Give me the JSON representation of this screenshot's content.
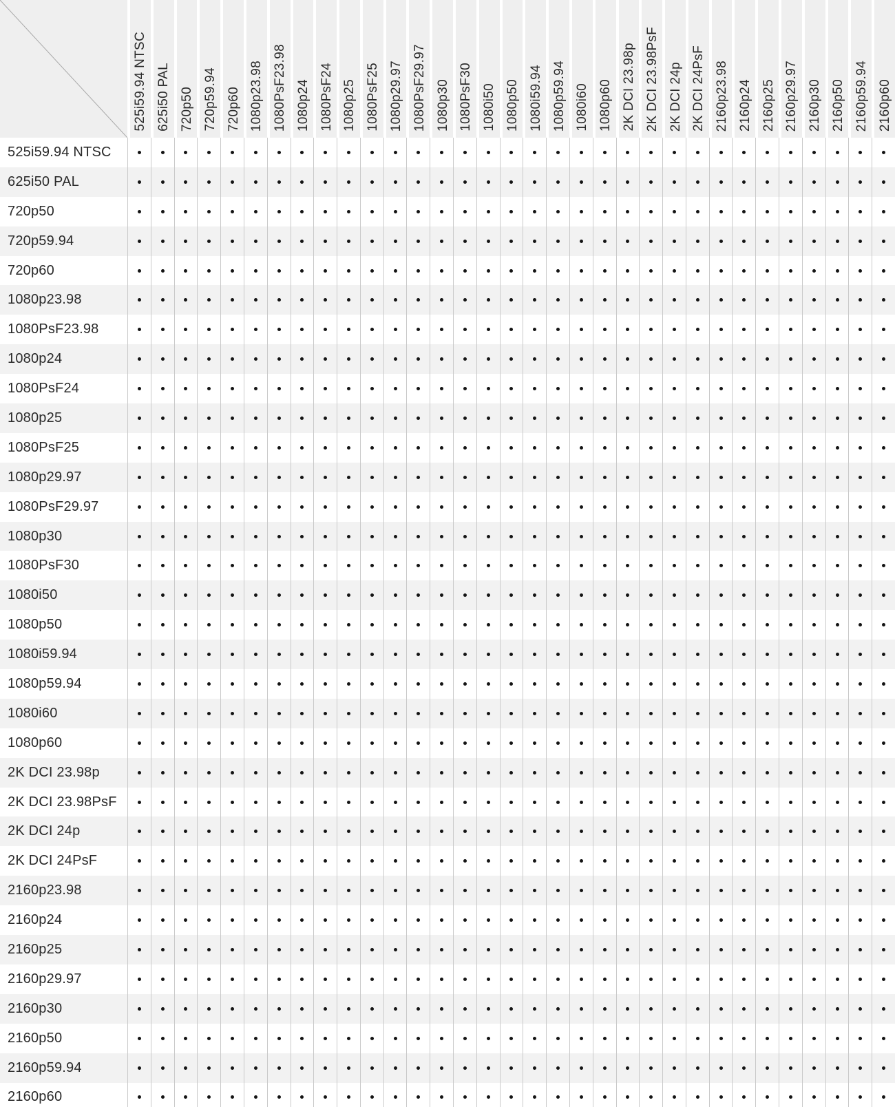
{
  "chart_data": {
    "type": "table",
    "marker": "•",
    "all_cells_marked": true,
    "column_headers": [
      "525i59.94 NTSC",
      "625i50 PAL",
      "720p50",
      "720p59.94",
      "720p60",
      "1080p23.98",
      "1080PsF23.98",
      "1080p24",
      "1080PsF24",
      "1080p25",
      "1080PsF25",
      "1080p29.97",
      "1080PsF29.97",
      "1080p30",
      "1080PsF30",
      "1080i50",
      "1080p50",
      "1080i59.94",
      "1080p59.94",
      "1080i60",
      "1080p60",
      "2K DCI 23.98p",
      "2K DCI 23.98PsF",
      "2K DCI 24p",
      "2K DCI 24PsF",
      "2160p23.98",
      "2160p24",
      "2160p25",
      "2160p29.97",
      "2160p30",
      "2160p50",
      "2160p59.94",
      "2160p60"
    ],
    "rows": [
      {
        "label": "525i59.94 NTSC",
        "cells": [
          1,
          1,
          1,
          1,
          1,
          1,
          1,
          1,
          1,
          1,
          1,
          1,
          1,
          1,
          1,
          1,
          1,
          1,
          1,
          1,
          1,
          1,
          1,
          1,
          1,
          1,
          1,
          1,
          1,
          1,
          1,
          1,
          1
        ]
      },
      {
        "label": "625i50 PAL",
        "cells": [
          1,
          1,
          1,
          1,
          1,
          1,
          1,
          1,
          1,
          1,
          1,
          1,
          1,
          1,
          1,
          1,
          1,
          1,
          1,
          1,
          1,
          1,
          1,
          1,
          1,
          1,
          1,
          1,
          1,
          1,
          1,
          1,
          1
        ]
      },
      {
        "label": "720p50",
        "cells": [
          1,
          1,
          1,
          1,
          1,
          1,
          1,
          1,
          1,
          1,
          1,
          1,
          1,
          1,
          1,
          1,
          1,
          1,
          1,
          1,
          1,
          1,
          1,
          1,
          1,
          1,
          1,
          1,
          1,
          1,
          1,
          1,
          1
        ]
      },
      {
        "label": "720p59.94",
        "cells": [
          1,
          1,
          1,
          1,
          1,
          1,
          1,
          1,
          1,
          1,
          1,
          1,
          1,
          1,
          1,
          1,
          1,
          1,
          1,
          1,
          1,
          1,
          1,
          1,
          1,
          1,
          1,
          1,
          1,
          1,
          1,
          1,
          1
        ]
      },
      {
        "label": "720p60",
        "cells": [
          1,
          1,
          1,
          1,
          1,
          1,
          1,
          1,
          1,
          1,
          1,
          1,
          1,
          1,
          1,
          1,
          1,
          1,
          1,
          1,
          1,
          1,
          1,
          1,
          1,
          1,
          1,
          1,
          1,
          1,
          1,
          1,
          1
        ]
      },
      {
        "label": "1080p23.98",
        "cells": [
          1,
          1,
          1,
          1,
          1,
          1,
          1,
          1,
          1,
          1,
          1,
          1,
          1,
          1,
          1,
          1,
          1,
          1,
          1,
          1,
          1,
          1,
          1,
          1,
          1,
          1,
          1,
          1,
          1,
          1,
          1,
          1,
          1
        ]
      },
      {
        "label": "1080PsF23.98",
        "cells": [
          1,
          1,
          1,
          1,
          1,
          1,
          1,
          1,
          1,
          1,
          1,
          1,
          1,
          1,
          1,
          1,
          1,
          1,
          1,
          1,
          1,
          1,
          1,
          1,
          1,
          1,
          1,
          1,
          1,
          1,
          1,
          1,
          1
        ]
      },
      {
        "label": "1080p24",
        "cells": [
          1,
          1,
          1,
          1,
          1,
          1,
          1,
          1,
          1,
          1,
          1,
          1,
          1,
          1,
          1,
          1,
          1,
          1,
          1,
          1,
          1,
          1,
          1,
          1,
          1,
          1,
          1,
          1,
          1,
          1,
          1,
          1,
          1
        ]
      },
      {
        "label": "1080PsF24",
        "cells": [
          1,
          1,
          1,
          1,
          1,
          1,
          1,
          1,
          1,
          1,
          1,
          1,
          1,
          1,
          1,
          1,
          1,
          1,
          1,
          1,
          1,
          1,
          1,
          1,
          1,
          1,
          1,
          1,
          1,
          1,
          1,
          1,
          1
        ]
      },
      {
        "label": "1080p25",
        "cells": [
          1,
          1,
          1,
          1,
          1,
          1,
          1,
          1,
          1,
          1,
          1,
          1,
          1,
          1,
          1,
          1,
          1,
          1,
          1,
          1,
          1,
          1,
          1,
          1,
          1,
          1,
          1,
          1,
          1,
          1,
          1,
          1,
          1
        ]
      },
      {
        "label": "1080PsF25",
        "cells": [
          1,
          1,
          1,
          1,
          1,
          1,
          1,
          1,
          1,
          1,
          1,
          1,
          1,
          1,
          1,
          1,
          1,
          1,
          1,
          1,
          1,
          1,
          1,
          1,
          1,
          1,
          1,
          1,
          1,
          1,
          1,
          1,
          1
        ]
      },
      {
        "label": "1080p29.97",
        "cells": [
          1,
          1,
          1,
          1,
          1,
          1,
          1,
          1,
          1,
          1,
          1,
          1,
          1,
          1,
          1,
          1,
          1,
          1,
          1,
          1,
          1,
          1,
          1,
          1,
          1,
          1,
          1,
          1,
          1,
          1,
          1,
          1,
          1
        ]
      },
      {
        "label": "1080PsF29.97",
        "cells": [
          1,
          1,
          1,
          1,
          1,
          1,
          1,
          1,
          1,
          1,
          1,
          1,
          1,
          1,
          1,
          1,
          1,
          1,
          1,
          1,
          1,
          1,
          1,
          1,
          1,
          1,
          1,
          1,
          1,
          1,
          1,
          1,
          1
        ]
      },
      {
        "label": "1080p30",
        "cells": [
          1,
          1,
          1,
          1,
          1,
          1,
          1,
          1,
          1,
          1,
          1,
          1,
          1,
          1,
          1,
          1,
          1,
          1,
          1,
          1,
          1,
          1,
          1,
          1,
          1,
          1,
          1,
          1,
          1,
          1,
          1,
          1,
          1
        ]
      },
      {
        "label": "1080PsF30",
        "cells": [
          1,
          1,
          1,
          1,
          1,
          1,
          1,
          1,
          1,
          1,
          1,
          1,
          1,
          1,
          1,
          1,
          1,
          1,
          1,
          1,
          1,
          1,
          1,
          1,
          1,
          1,
          1,
          1,
          1,
          1,
          1,
          1,
          1
        ]
      },
      {
        "label": "1080i50",
        "cells": [
          1,
          1,
          1,
          1,
          1,
          1,
          1,
          1,
          1,
          1,
          1,
          1,
          1,
          1,
          1,
          1,
          1,
          1,
          1,
          1,
          1,
          1,
          1,
          1,
          1,
          1,
          1,
          1,
          1,
          1,
          1,
          1,
          1
        ]
      },
      {
        "label": "1080p50",
        "cells": [
          1,
          1,
          1,
          1,
          1,
          1,
          1,
          1,
          1,
          1,
          1,
          1,
          1,
          1,
          1,
          1,
          1,
          1,
          1,
          1,
          1,
          1,
          1,
          1,
          1,
          1,
          1,
          1,
          1,
          1,
          1,
          1,
          1
        ]
      },
      {
        "label": "1080i59.94",
        "cells": [
          1,
          1,
          1,
          1,
          1,
          1,
          1,
          1,
          1,
          1,
          1,
          1,
          1,
          1,
          1,
          1,
          1,
          1,
          1,
          1,
          1,
          1,
          1,
          1,
          1,
          1,
          1,
          1,
          1,
          1,
          1,
          1,
          1
        ]
      },
      {
        "label": "1080p59.94",
        "cells": [
          1,
          1,
          1,
          1,
          1,
          1,
          1,
          1,
          1,
          1,
          1,
          1,
          1,
          1,
          1,
          1,
          1,
          1,
          1,
          1,
          1,
          1,
          1,
          1,
          1,
          1,
          1,
          1,
          1,
          1,
          1,
          1,
          1
        ]
      },
      {
        "label": "1080i60",
        "cells": [
          1,
          1,
          1,
          1,
          1,
          1,
          1,
          1,
          1,
          1,
          1,
          1,
          1,
          1,
          1,
          1,
          1,
          1,
          1,
          1,
          1,
          1,
          1,
          1,
          1,
          1,
          1,
          1,
          1,
          1,
          1,
          1,
          1
        ]
      },
      {
        "label": "1080p60",
        "cells": [
          1,
          1,
          1,
          1,
          1,
          1,
          1,
          1,
          1,
          1,
          1,
          1,
          1,
          1,
          1,
          1,
          1,
          1,
          1,
          1,
          1,
          1,
          1,
          1,
          1,
          1,
          1,
          1,
          1,
          1,
          1,
          1,
          1
        ]
      },
      {
        "label": "2K DCI 23.98p",
        "cells": [
          1,
          1,
          1,
          1,
          1,
          1,
          1,
          1,
          1,
          1,
          1,
          1,
          1,
          1,
          1,
          1,
          1,
          1,
          1,
          1,
          1,
          1,
          1,
          1,
          1,
          1,
          1,
          1,
          1,
          1,
          1,
          1,
          1
        ]
      },
      {
        "label": "2K DCI 23.98PsF",
        "cells": [
          1,
          1,
          1,
          1,
          1,
          1,
          1,
          1,
          1,
          1,
          1,
          1,
          1,
          1,
          1,
          1,
          1,
          1,
          1,
          1,
          1,
          1,
          1,
          1,
          1,
          1,
          1,
          1,
          1,
          1,
          1,
          1,
          1
        ]
      },
      {
        "label": "2K DCI 24p",
        "cells": [
          1,
          1,
          1,
          1,
          1,
          1,
          1,
          1,
          1,
          1,
          1,
          1,
          1,
          1,
          1,
          1,
          1,
          1,
          1,
          1,
          1,
          1,
          1,
          1,
          1,
          1,
          1,
          1,
          1,
          1,
          1,
          1,
          1
        ]
      },
      {
        "label": "2K DCI 24PsF",
        "cells": [
          1,
          1,
          1,
          1,
          1,
          1,
          1,
          1,
          1,
          1,
          1,
          1,
          1,
          1,
          1,
          1,
          1,
          1,
          1,
          1,
          1,
          1,
          1,
          1,
          1,
          1,
          1,
          1,
          1,
          1,
          1,
          1,
          1
        ]
      },
      {
        "label": "2160p23.98",
        "cells": [
          1,
          1,
          1,
          1,
          1,
          1,
          1,
          1,
          1,
          1,
          1,
          1,
          1,
          1,
          1,
          1,
          1,
          1,
          1,
          1,
          1,
          1,
          1,
          1,
          1,
          1,
          1,
          1,
          1,
          1,
          1,
          1,
          1
        ]
      },
      {
        "label": "2160p24",
        "cells": [
          1,
          1,
          1,
          1,
          1,
          1,
          1,
          1,
          1,
          1,
          1,
          1,
          1,
          1,
          1,
          1,
          1,
          1,
          1,
          1,
          1,
          1,
          1,
          1,
          1,
          1,
          1,
          1,
          1,
          1,
          1,
          1,
          1
        ]
      },
      {
        "label": "2160p25",
        "cells": [
          1,
          1,
          1,
          1,
          1,
          1,
          1,
          1,
          1,
          1,
          1,
          1,
          1,
          1,
          1,
          1,
          1,
          1,
          1,
          1,
          1,
          1,
          1,
          1,
          1,
          1,
          1,
          1,
          1,
          1,
          1,
          1,
          1
        ]
      },
      {
        "label": "2160p29.97",
        "cells": [
          1,
          1,
          1,
          1,
          1,
          1,
          1,
          1,
          1,
          1,
          1,
          1,
          1,
          1,
          1,
          1,
          1,
          1,
          1,
          1,
          1,
          1,
          1,
          1,
          1,
          1,
          1,
          1,
          1,
          1,
          1,
          1,
          1
        ]
      },
      {
        "label": "2160p30",
        "cells": [
          1,
          1,
          1,
          1,
          1,
          1,
          1,
          1,
          1,
          1,
          1,
          1,
          1,
          1,
          1,
          1,
          1,
          1,
          1,
          1,
          1,
          1,
          1,
          1,
          1,
          1,
          1,
          1,
          1,
          1,
          1,
          1,
          1
        ]
      },
      {
        "label": "2160p50",
        "cells": [
          1,
          1,
          1,
          1,
          1,
          1,
          1,
          1,
          1,
          1,
          1,
          1,
          1,
          1,
          1,
          1,
          1,
          1,
          1,
          1,
          1,
          1,
          1,
          1,
          1,
          1,
          1,
          1,
          1,
          1,
          1,
          1,
          1
        ]
      },
      {
        "label": "2160p59.94",
        "cells": [
          1,
          1,
          1,
          1,
          1,
          1,
          1,
          1,
          1,
          1,
          1,
          1,
          1,
          1,
          1,
          1,
          1,
          1,
          1,
          1,
          1,
          1,
          1,
          1,
          1,
          1,
          1,
          1,
          1,
          1,
          1,
          1,
          1
        ]
      },
      {
        "label": "2160p60",
        "cells": [
          1,
          1,
          1,
          1,
          1,
          1,
          1,
          1,
          1,
          1,
          1,
          1,
          1,
          1,
          1,
          1,
          1,
          1,
          1,
          1,
          1,
          1,
          1,
          1,
          1,
          1,
          1,
          1,
          1,
          1,
          1,
          1,
          1
        ]
      }
    ],
    "layout_hints": {
      "row_stripe_start": "white",
      "grid_lines": "vertical-only"
    }
  },
  "colors": {
    "header_strip_bg": "#efefef",
    "row_alt_bg": "#f2f2f2",
    "grid_line": "#c9c9c9",
    "diagonal_line": "#a9a9a9",
    "marker_color": "#141414",
    "text_color": "#2a2a2a"
  }
}
